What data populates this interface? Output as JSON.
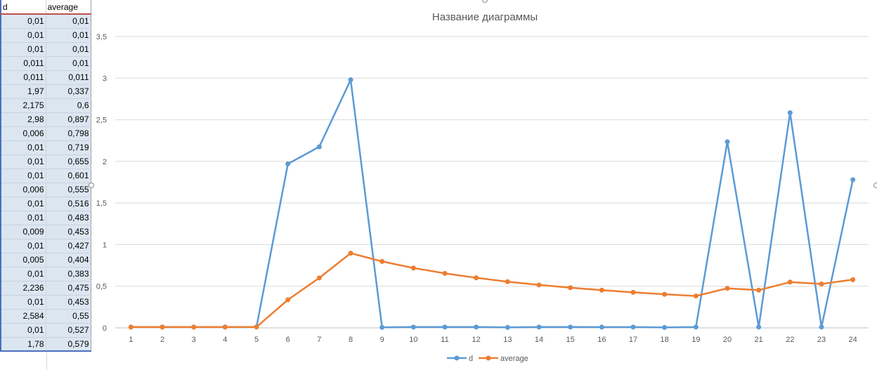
{
  "sheet": {
    "headers": [
      "d",
      "average"
    ],
    "rows": [
      [
        "0,01",
        "0,01"
      ],
      [
        "0,01",
        "0,01"
      ],
      [
        "0,01",
        "0,01"
      ],
      [
        "0,011",
        "0,01"
      ],
      [
        "0,011",
        "0,011"
      ],
      [
        "1,97",
        "0,337"
      ],
      [
        "2,175",
        "0,6"
      ],
      [
        "2,98",
        "0,897"
      ],
      [
        "0,006",
        "0,798"
      ],
      [
        "0,01",
        "0,719"
      ],
      [
        "0,01",
        "0,655"
      ],
      [
        "0,01",
        "0,601"
      ],
      [
        "0,006",
        "0,555"
      ],
      [
        "0,01",
        "0,516"
      ],
      [
        "0,01",
        "0,483"
      ],
      [
        "0,009",
        "0,453"
      ],
      [
        "0,01",
        "0,427"
      ],
      [
        "0,005",
        "0,404"
      ],
      [
        "0,01",
        "0,383"
      ],
      [
        "2,236",
        "0,475"
      ],
      [
        "0,01",
        "0,453"
      ],
      [
        "2,584",
        "0,55"
      ],
      [
        "0,01",
        "0,527"
      ],
      [
        "1,78",
        "0,579"
      ]
    ]
  },
  "chart_data": {
    "type": "line",
    "title": "Название диаграммы",
    "xlabel": "",
    "ylabel": "",
    "categories": [
      "1",
      "2",
      "3",
      "4",
      "5",
      "6",
      "7",
      "8",
      "9",
      "10",
      "11",
      "12",
      "13",
      "14",
      "15",
      "16",
      "17",
      "18",
      "19",
      "20",
      "21",
      "22",
      "23",
      "24"
    ],
    "ylim": [
      0,
      3.5
    ],
    "yticks": [
      0,
      0.5,
      1,
      1.5,
      2,
      2.5,
      3,
      3.5
    ],
    "ytick_labels": [
      "0",
      "0,5",
      "1",
      "1,5",
      "2",
      "2,5",
      "3",
      "3,5"
    ],
    "grid": true,
    "legend_position": "bottom",
    "series": [
      {
        "name": "d",
        "color": "#5b9bd5",
        "values": [
          0.01,
          0.01,
          0.01,
          0.011,
          0.011,
          1.97,
          2.175,
          2.98,
          0.006,
          0.01,
          0.01,
          0.01,
          0.006,
          0.01,
          0.01,
          0.009,
          0.01,
          0.005,
          0.01,
          2.236,
          0.01,
          2.584,
          0.01,
          1.78
        ]
      },
      {
        "name": "average",
        "color": "#ed7d31",
        "values": [
          0.01,
          0.01,
          0.01,
          0.01,
          0.011,
          0.337,
          0.6,
          0.897,
          0.798,
          0.719,
          0.655,
          0.601,
          0.555,
          0.516,
          0.483,
          0.453,
          0.427,
          0.404,
          0.383,
          0.475,
          0.453,
          0.55,
          0.527,
          0.579
        ]
      }
    ]
  }
}
